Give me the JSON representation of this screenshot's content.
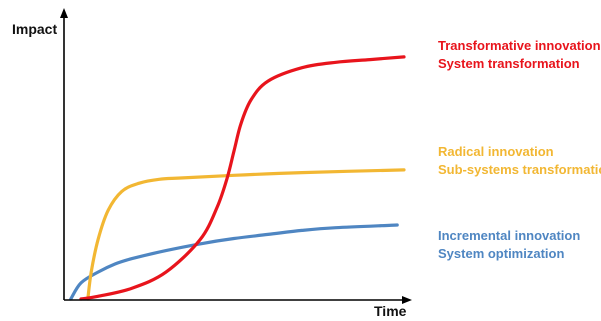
{
  "chart_data": {
    "type": "line",
    "title": "",
    "xlabel": "Time",
    "ylabel": "Impact",
    "xlim": [
      0,
      100
    ],
    "ylim": [
      0,
      100
    ],
    "grid": false,
    "legend": "right",
    "series": [
      {
        "name": "Transformative innovation",
        "subtitle": "System transformation",
        "color": "#e8141c",
        "x": [
          5,
          10,
          20,
          30,
          40,
          45,
          48,
          50,
          52,
          55,
          60,
          70,
          80,
          90,
          100
        ],
        "y": [
          0,
          1,
          4,
          10,
          22,
          34,
          45,
          55,
          65,
          74,
          81,
          86,
          88,
          89,
          90
        ]
      },
      {
        "name": "Radical innovation",
        "subtitle": "Sub-systems transformation",
        "color": "#f2b733",
        "x": [
          7,
          8,
          10,
          13,
          17,
          22,
          28,
          35,
          50,
          70,
          100
        ],
        "y": [
          0,
          10,
          22,
          33,
          40,
          43,
          44.5,
          45,
          46,
          47,
          48
        ]
      },
      {
        "name": "Incremental innovation",
        "subtitle": "System optimization",
        "color": "#4f86c2",
        "x": [
          2,
          5,
          10,
          15,
          20,
          30,
          40,
          50,
          60,
          70,
          80,
          98
        ],
        "y": [
          0,
          6,
          10,
          13,
          15,
          18,
          20.5,
          22.5,
          24,
          25.5,
          26.5,
          27.5
        ]
      }
    ]
  }
}
